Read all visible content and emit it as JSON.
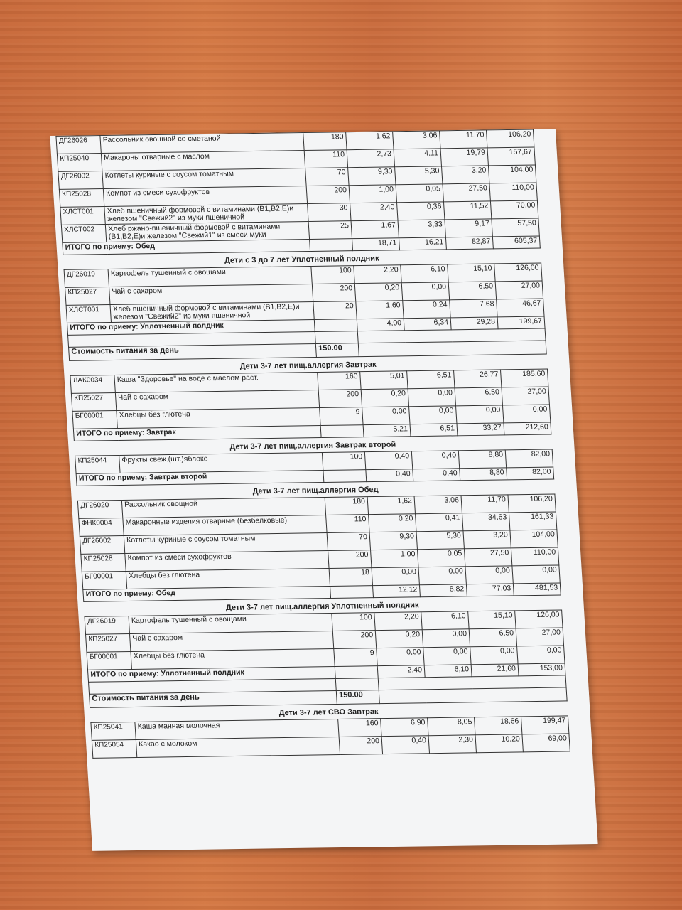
{
  "sections": [
    {
      "rows": [
        [
          "ДГ26026",
          "Рассольник овощной со сметаной",
          "180",
          "1,62",
          "3,06",
          "11,70",
          "106,20"
        ],
        [
          "КП25040",
          "Макароны отварные с маслом",
          "110",
          "2,73",
          "4,11",
          "19,79",
          "157,67"
        ],
        [
          "ДГ26002",
          "Котлеты куриные с соусом томатным",
          "70",
          "9,30",
          "5,30",
          "3,20",
          "104,00"
        ],
        [
          "КП25028",
          "Компот из смеси сухофруктов",
          "200",
          "1,00",
          "0,05",
          "27,50",
          "110,00"
        ],
        [
          "ХЛСТ001",
          "Хлеб пшеничный формовой с витаминами (В1,В2,Е)и железом \"Свежий2\" из муки пшеничной",
          "30",
          "2,40",
          "0,36",
          "11,52",
          "70,00"
        ],
        [
          "ХЛСТ002",
          "Хлеб ржано-пшеничный формовой с витаминами (В1,В2,Е)и железом \"Свежий1\" из смеси муки",
          "25",
          "1,67",
          "3,33",
          "9,17",
          "57,50"
        ]
      ],
      "total": {
        "label": "ИТОГО по приему: Обед",
        "values": [
          "18,71",
          "16,21",
          "82,87",
          "605,37"
        ]
      }
    },
    {
      "title": "Дети с 3 до 7 лет Уплотненный полдник",
      "rows": [
        [
          "ДГ26019",
          "Картофель тушенный с овощами",
          "100",
          "2,20",
          "6,10",
          "15,10",
          "126,00"
        ],
        [
          "КП25027",
          "Чай с сахаром",
          "200",
          "0,20",
          "0,00",
          "6,50",
          "27,00"
        ],
        [
          "ХЛСТ001",
          "Хлеб пшеничный формовой с витаминами (В1,В2,Е)и железом \"Свежий2\" из муки пшеничной",
          "20",
          "1,60",
          "0,24",
          "7,68",
          "46,67"
        ]
      ],
      "total": {
        "label": "ИТОГО по приему: Уплотненный полдник",
        "values": [
          "4,00",
          "6,34",
          "29,28",
          "199,67"
        ]
      },
      "cost": {
        "label": "Стоимость питания за день",
        "value": "150.00"
      }
    },
    {
      "title": "Дети 3-7 лет пищ.аллергия Завтрак",
      "rows": [
        [
          "ЛАК0034",
          "Каша \"Здоровье\" на воде  с маслом раст.",
          "160",
          "5,01",
          "6,51",
          "26,77",
          "185,60"
        ],
        [
          "КП25027",
          "Чай с сахаром",
          "200",
          "0,20",
          "0,00",
          "6,50",
          "27,00"
        ],
        [
          "БГ00001",
          "Хлебцы без глютена",
          "9",
          "0,00",
          "0,00",
          "0,00",
          "0,00"
        ]
      ],
      "total": {
        "label": "ИТОГО по приему: Завтрак",
        "values": [
          "5,21",
          "6,51",
          "33,27",
          "212,60"
        ]
      }
    },
    {
      "title": "Дети 3-7 лет пищ.аллергия Завтрак второй",
      "rows": [
        [
          "КП25044",
          "Фрукты свеж.(шт.)яблоко",
          "100",
          "0,40",
          "0,40",
          "8,80",
          "82,00"
        ]
      ],
      "total": {
        "label": "ИТОГО по приему: Завтрак второй",
        "values": [
          "0,40",
          "0,40",
          "8,80",
          "82,00"
        ]
      }
    },
    {
      "title": "Дети 3-7 лет пищ.аллергия Обед",
      "rows": [
        [
          "ДГ26020",
          "Рассольник овощной",
          "180",
          "1,62",
          "3,06",
          "11,70",
          "106,20"
        ],
        [
          "ФНК0004",
          "Макаронные изделия отварные (безбелковые)",
          "110",
          "0,20",
          "0,41",
          "34,63",
          "161,33"
        ],
        [
          "ДГ26002",
          "Котлеты куриные с соусом томатным",
          "70",
          "9,30",
          "5,30",
          "3,20",
          "104,00"
        ],
        [
          "КП25028",
          "Компот из смеси сухофруктов",
          "200",
          "1,00",
          "0,05",
          "27,50",
          "110,00"
        ],
        [
          "БГ00001",
          "Хлебцы без глютена",
          "18",
          "0,00",
          "0,00",
          "0,00",
          "0,00"
        ]
      ],
      "total": {
        "label": "ИТОГО по приему: Обед",
        "values": [
          "12,12",
          "8,82",
          "77,03",
          "481,53"
        ]
      }
    },
    {
      "title": "Дети 3-7 лет пищ.аллергия Уплотненный полдник",
      "rows": [
        [
          "ДГ26019",
          "Картофель тушенный с овощами",
          "100",
          "2,20",
          "6,10",
          "15,10",
          "126,00"
        ],
        [
          "КП25027",
          "Чай с сахаром",
          "200",
          "0,20",
          "0,00",
          "6,50",
          "27,00"
        ],
        [
          "БГ00001",
          "Хлебцы без глютена",
          "9",
          "0,00",
          "0,00",
          "0,00",
          "0,00"
        ]
      ],
      "total": {
        "label": "ИТОГО по приему: Уплотненный полдник",
        "values": [
          "2,40",
          "6,10",
          "21,60",
          "153,00"
        ]
      },
      "cost": {
        "label": "Стоимость питания за день",
        "value": "150.00"
      }
    },
    {
      "title": "Дети 3-7 лет СВО Завтрак",
      "rows": [
        [
          "КП25041",
          "Каша манная молочная",
          "160",
          "6,90",
          "8,05",
          "18,66",
          "199,47"
        ],
        [
          "КП25054",
          "Какао с молоком",
          "200",
          "0,40",
          "2,30",
          "10,20",
          "69,00"
        ]
      ]
    }
  ]
}
